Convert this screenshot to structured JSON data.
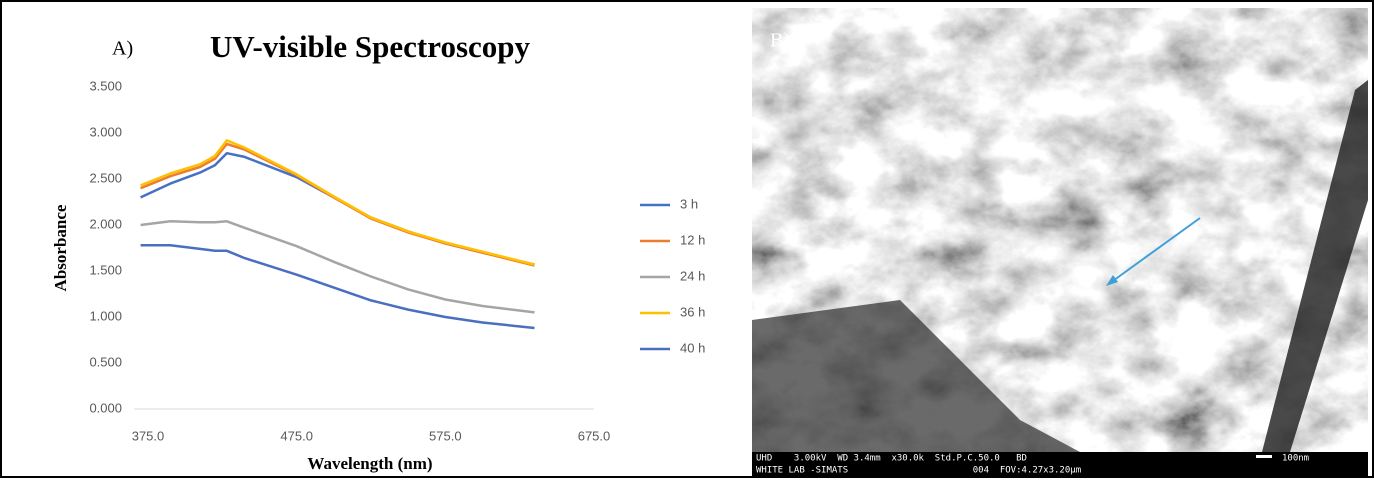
{
  "chart_data": {
    "type": "line",
    "panel_label": "A)",
    "title": "UV-visible Spectroscopy",
    "x_label": "Wavelength (nm)",
    "y_label": "Absorbance",
    "x": [
      370,
      390,
      410,
      420,
      428,
      440,
      475,
      500,
      525,
      550,
      575,
      600,
      635
    ],
    "series": [
      {
        "name": "3 h",
        "color": "#4472c4",
        "values": [
          2.3,
          2.45,
          2.57,
          2.65,
          2.78,
          2.74,
          2.52,
          2.3,
          2.08,
          1.93,
          1.8,
          1.7,
          1.57
        ]
      },
      {
        "name": "12 h",
        "color": "#ed7d31",
        "values": [
          2.4,
          2.53,
          2.63,
          2.72,
          2.88,
          2.82,
          2.54,
          2.3,
          2.07,
          1.92,
          1.8,
          1.7,
          1.56
        ]
      },
      {
        "name": "24 h",
        "color": "#a5a5a5",
        "values": [
          2.0,
          2.04,
          2.03,
          2.03,
          2.04,
          1.97,
          1.77,
          1.6,
          1.44,
          1.3,
          1.19,
          1.12,
          1.05
        ]
      },
      {
        "name": "36 h",
        "color": "#ffc000",
        "values": [
          2.43,
          2.56,
          2.66,
          2.75,
          2.92,
          2.84,
          2.55,
          2.31,
          2.08,
          1.93,
          1.81,
          1.71,
          1.57
        ]
      },
      {
        "name": "40 h",
        "color": "#4a6fc0",
        "values": [
          1.78,
          1.78,
          1.74,
          1.72,
          1.72,
          1.64,
          1.46,
          1.32,
          1.18,
          1.08,
          1.0,
          0.94,
          0.88
        ]
      }
    ],
    "xlim": [
      375,
      675
    ],
    "xticks": [
      {
        "value": 375,
        "label": "375.0"
      },
      {
        "value": 475,
        "label": "475.0"
      },
      {
        "value": 575,
        "label": "575.0"
      },
      {
        "value": 675,
        "label": "675.0"
      }
    ],
    "ylim": [
      0,
      3.5
    ],
    "yticks": [
      {
        "value": 0,
        "label": "0.000"
      },
      {
        "value": 0.5,
        "label": "0.500"
      },
      {
        "value": 1,
        "label": "1.000"
      },
      {
        "value": 1.5,
        "label": "1.500"
      },
      {
        "value": 2,
        "label": "2.000"
      },
      {
        "value": 2.5,
        "label": "2.500"
      },
      {
        "value": 3,
        "label": "3.000"
      },
      {
        "value": 3.5,
        "label": "3.500"
      }
    ],
    "grid": false,
    "legend": "right"
  },
  "image_panel": {
    "label": "B)",
    "info_top": "UHD    3.00kV  WD 3.4mm  x30.0k  Std.P.C.50.0   BD",
    "info_bottom": "WHITE LAB -SIMATS                       004  FOV:4.27x3.20μm",
    "scale": "100nm"
  }
}
